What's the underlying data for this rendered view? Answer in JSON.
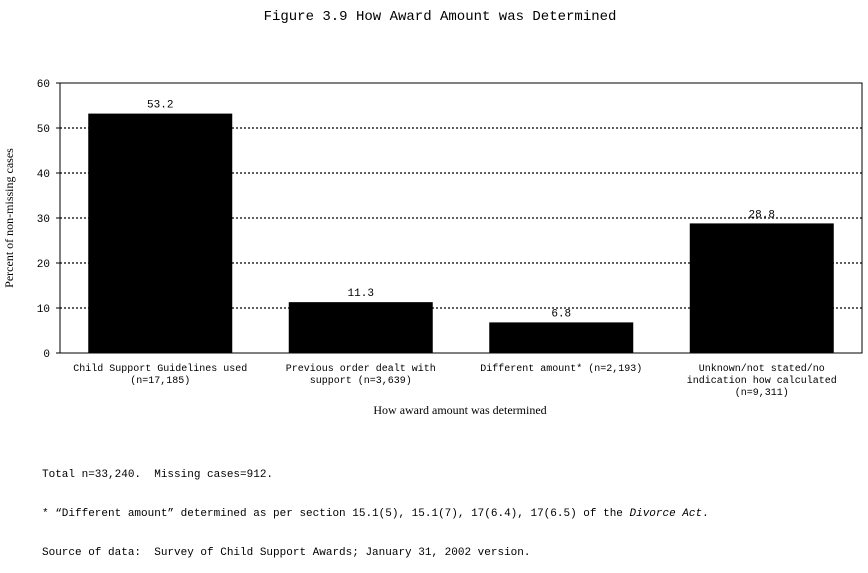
{
  "chart_data": {
    "type": "bar",
    "title": "Figure 3.9  How Award Amount was Determined",
    "ylabel": "Percent of non-missing cases",
    "xlabel": "How award amount was determined",
    "ylim": [
      0,
      60
    ],
    "yticks": [
      "0",
      "10",
      "20",
      "30",
      "40",
      "50",
      "60"
    ],
    "grid": "horizontal-dotted",
    "categories": [
      [
        "Child Support Guidelines used",
        "(n=17,185)"
      ],
      [
        "Previous order dealt with",
        "support (n=3,639)"
      ],
      [
        "Different amount* (n=2,193)"
      ],
      [
        "Unknown/not stated/no",
        "indication how calculated",
        "(n=9,311)"
      ]
    ],
    "values": [
      53.2,
      11.3,
      6.8,
      28.8
    ],
    "value_labels": [
      "53.2",
      "11.3",
      "6.8",
      "28.8"
    ],
    "bar_color": "#000000"
  },
  "notes": {
    "line1": "Total n=33,240.  Missing cases=912.",
    "line2_prefix": "* “Different amount” determined as per section 15.1(5), 15.1(7), 17(6.4), 17(6.5) of the ",
    "line2_italic": "Divorce Act",
    "line2_suffix": ".",
    "line3": "Source of data:  Survey of Child Support Awards; January 31, 2002 version."
  }
}
